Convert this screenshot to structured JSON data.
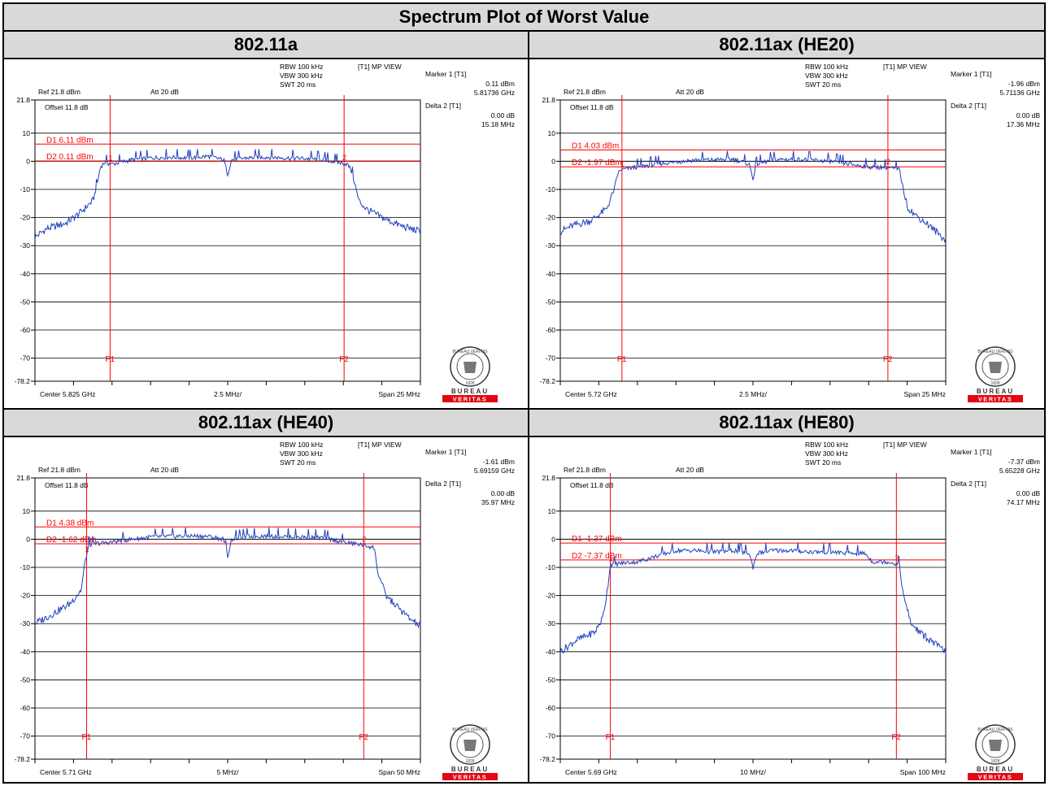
{
  "title": "Spectrum Plot of Worst Value",
  "colors": {
    "trace": "#1f3fbf",
    "marker": "#ff0000",
    "grid": "#000000",
    "header_bg": "#d9d9d9",
    "logo_red": "#e30613"
  },
  "logo": {
    "top": "BUREAU",
    "bottom": "VERITAS",
    "seal_text": "BUREAU VERITAS",
    "seal_year": "1828"
  },
  "panels": [
    {
      "heading": "802.11a",
      "rbw": "RBW 100 kHz",
      "vbw": "VBW 300 kHz",
      "swt": "SWT 20 ms",
      "mode": "[T1] MP VIEW",
      "ref": "Ref 21.8 dBm",
      "att": "Att  20 dB",
      "offset": "Offset 11.8 dB",
      "marker1_label": "Marker 1 [T1]",
      "marker1_level": "0.11 dBm",
      "marker1_freq": "5.81736 GHz",
      "delta2_label": "Delta 2 [T1]",
      "delta2_level": "0.00 dB",
      "delta2_freq": "15.18 MHz",
      "d1_label": "D1 6.11 dBm",
      "d2_label": "D2 0.11 dBm",
      "f1_label": "F1",
      "f2_label": "F2",
      "m1_tag": "1",
      "m2_tag": "2",
      "center": "Center 5.825 GHz",
      "per_div": "2.5 MHz/",
      "span": "Span 25 MHz",
      "chart_data": {
        "type": "line",
        "xlabel": "",
        "ylabel": "dBm",
        "ylim": [
          -78.2,
          21.8
        ],
        "y_ticks": [
          "21.8",
          "10",
          "0",
          "-10",
          "-20",
          "-30",
          "-40",
          "-50",
          "-60",
          "-70",
          "-78.2"
        ],
        "x_divisions": 10,
        "d1_level": 6.11,
        "d2_level": 0.11,
        "f1_div": 1.95,
        "f2_div": 8.02,
        "series": [
          {
            "x": [
              0,
              0.3,
              0.8,
              1.2,
              1.5,
              1.6,
              1.7,
              1.8,
              2.0,
              2.5,
              3.0,
              3.5,
              4.0,
              4.5,
              4.9,
              5.0,
              5.1,
              5.5,
              6.0,
              6.5,
              7.0,
              7.5,
              7.9,
              8.1,
              8.2,
              8.3,
              8.4,
              8.6,
              9.0,
              9.5,
              10.0
            ],
            "y": [
              -27,
              -24,
              -22,
              -18,
              -14,
              -9,
              -2,
              -0.5,
              -1,
              0.5,
              1.2,
              1.5,
              1.2,
              1.8,
              0.5,
              -4.5,
              0.5,
              1.2,
              1.5,
              1.2,
              1.0,
              0.5,
              -0.5,
              -1,
              -3,
              -8,
              -14,
              -17,
              -20,
              -23,
              -25
            ]
          }
        ]
      }
    },
    {
      "heading": "802.11ax (HE20)",
      "rbw": "RBW 100 kHz",
      "vbw": "VBW 300 kHz",
      "swt": "SWT 20 ms",
      "mode": "[T1] MP VIEW",
      "ref": "Ref 21.8 dBm",
      "att": "Att  20 dB",
      "offset": "Offset 11.8 dB",
      "marker1_label": "Marker 1 [T1]",
      "marker1_level": "-1.96 dBm",
      "marker1_freq": "5.71136 GHz",
      "delta2_label": "Delta 2 [T1]",
      "delta2_level": "0.00 dB",
      "delta2_freq": "17.36 MHz",
      "d1_label": "D1 4.03 dBm",
      "d2_label": "D2 -1.97 dBm",
      "f1_label": "F1",
      "f2_label": "F2",
      "m1_tag": "1",
      "m2_tag": "2",
      "center": "Center 5.72 GHz",
      "per_div": "2.5 MHz/",
      "span": "Span 25 MHz",
      "chart_data": {
        "type": "line",
        "xlabel": "",
        "ylabel": "dBm",
        "ylim": [
          -78.2,
          21.8
        ],
        "y_ticks": [
          "21.8",
          "10",
          "0",
          "-10",
          "-20",
          "-30",
          "-40",
          "-50",
          "-60",
          "-70",
          "-78.2"
        ],
        "x_divisions": 10,
        "d1_level": 4.03,
        "d2_level": -1.97,
        "f1_div": 1.6,
        "f2_div": 8.5,
        "series": [
          {
            "x": [
              0,
              0.3,
              0.8,
              1.2,
              1.4,
              1.5,
              1.6,
              1.8,
              2.0,
              2.5,
              3.0,
              3.5,
              4.0,
              4.5,
              4.9,
              5.0,
              5.1,
              5.5,
              6.0,
              6.5,
              7.0,
              7.5,
              8.0,
              8.5,
              8.8,
              8.9,
              9.0,
              9.2,
              9.5,
              10.0
            ],
            "y": [
              -25,
              -23,
              -21,
              -17,
              -10,
              -4,
              -3,
              -2.5,
              -2,
              -1,
              -0.2,
              0.5,
              0.5,
              0.8,
              -1,
              -6,
              -1,
              0.5,
              0.8,
              0.5,
              0,
              -1,
              -2,
              -2.2,
              -3,
              -10,
              -16,
              -19,
              -22,
              -28
            ]
          }
        ]
      }
    },
    {
      "heading": "802.11ax (HE40)",
      "rbw": "RBW 100 kHz",
      "vbw": "VBW 300 kHz",
      "swt": "SWT 20 ms",
      "mode": "[T1] MP VIEW",
      "ref": "Ref 21.8 dBm",
      "att": "Att  20 dB",
      "offset": "Offset 11.8 dB",
      "marker1_label": "Marker 1 [T1]",
      "marker1_level": "-1.61 dBm",
      "marker1_freq": "5.69159 GHz",
      "delta2_label": "Delta 2 [T1]",
      "delta2_level": "0.00 dB",
      "delta2_freq": "35.97 MHz",
      "d1_label": "D1 4.38 dBm",
      "d2_label": "D2 -1.62 dBm",
      "f1_label": "F1",
      "f2_label": "F2",
      "m1_tag": "1",
      "m2_tag": "2",
      "center": "Center 5.71 GHz",
      "per_div": "5 MHz/",
      "span": "Span 50 MHz",
      "chart_data": {
        "type": "line",
        "xlabel": "",
        "ylabel": "dBm",
        "ylim": [
          -78.2,
          21.8
        ],
        "y_ticks": [
          "21.8",
          "10",
          "0",
          "-10",
          "-20",
          "-30",
          "-40",
          "-50",
          "-60",
          "-70",
          "-78.2"
        ],
        "x_divisions": 10,
        "d1_level": 4.38,
        "d2_level": -1.62,
        "f1_div": 1.34,
        "f2_div": 8.53,
        "series": [
          {
            "x": [
              0,
              0.4,
              0.9,
              1.2,
              1.3,
              1.4,
              1.6,
              2.0,
              2.5,
              3.0,
              3.5,
              4.0,
              4.5,
              4.9,
              5.0,
              5.1,
              5.5,
              6.0,
              6.5,
              7.0,
              7.5,
              8.0,
              8.5,
              8.8,
              8.9,
              9.1,
              9.4,
              9.7,
              10.0
            ],
            "y": [
              -30,
              -27,
              -23,
              -18,
              -8,
              -2,
              -1.5,
              -1,
              0,
              0.8,
              1,
              1.2,
              1,
              0,
              -6,
              0,
              1,
              1.2,
              1,
              0.8,
              0.5,
              -1,
              -2,
              -3,
              -12,
              -20,
              -24,
              -28,
              -31
            ]
          }
        ]
      }
    },
    {
      "heading": "802.11ax (HE80)",
      "rbw": "RBW 100 kHz",
      "vbw": "VBW 300 kHz",
      "swt": "SWT 20 ms",
      "mode": "[T1] MP VIEW",
      "ref": "Ref 21.8 dBm",
      "att": "Att  20 dB",
      "offset": "Offset 11.8 dB",
      "marker1_label": "Marker 1 [T1]",
      "marker1_level": "-7.37 dBm",
      "marker1_freq": "5.65228 GHz",
      "delta2_label": "Delta 2 [T1]",
      "delta2_level": "0.00 dB",
      "delta2_freq": "74.17 MHz",
      "d1_label": "D1 -1.37 dBm",
      "d2_label": "D2 -7.37 dBm",
      "f1_label": "F1",
      "f2_label": "F2",
      "m1_tag": "1",
      "m2_tag": "2",
      "center": "Center 5.69 GHz",
      "per_div": "10 MHz/",
      "span": "Span 100 MHz",
      "chart_data": {
        "type": "line",
        "xlabel": "",
        "ylabel": "dBm",
        "ylim": [
          -78.2,
          21.8
        ],
        "y_ticks": [
          "21.8",
          "10",
          "0",
          "-10",
          "-20",
          "-30",
          "-40",
          "-50",
          "-60",
          "-70",
          "-78.2"
        ],
        "x_divisions": 10,
        "d1_level": -1.37,
        "d2_level": -7.37,
        "f1_div": 1.3,
        "f2_div": 8.72,
        "series": [
          {
            "x": [
              0,
              0.4,
              0.9,
              1.1,
              1.2,
              1.3,
              1.6,
              2.0,
              2.5,
              3.0,
              3.5,
              4.0,
              4.5,
              4.9,
              5.0,
              5.1,
              5.5,
              6.0,
              6.5,
              7.0,
              7.5,
              7.9,
              8.1,
              8.5,
              8.8,
              8.9,
              9.1,
              9.4,
              9.7,
              10.0
            ],
            "y": [
              -40,
              -36,
              -33,
              -28,
              -20,
              -9,
              -8.5,
              -8,
              -6,
              -4,
              -4,
              -4.5,
              -4,
              -5,
              -10,
              -5,
              -4,
              -4,
              -4.5,
              -4.5,
              -5,
              -5,
              -8,
              -8,
              -9,
              -20,
              -30,
              -34,
              -37,
              -40
            ]
          }
        ]
      }
    }
  ]
}
